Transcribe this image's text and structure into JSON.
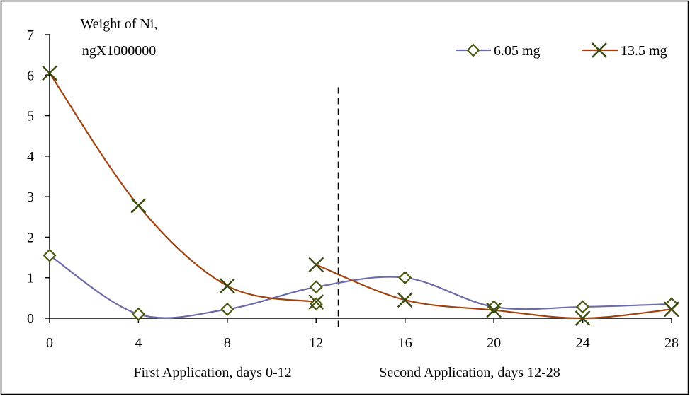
{
  "chart_data": {
    "type": "line",
    "title": "",
    "ylabel_lines": [
      "Weight of Ni,",
      "ngX1000000"
    ],
    "xlabel": {
      "left": "First Application, days 0-12",
      "right": "Second Application, days 12-28"
    },
    "xlim": [
      0,
      28
    ],
    "ylim": [
      0,
      7
    ],
    "x_ticks": [
      0,
      4,
      8,
      12,
      16,
      20,
      24,
      28
    ],
    "y_ticks": [
      0,
      1,
      2,
      3,
      4,
      5,
      6,
      7
    ],
    "divider_x": 13,
    "legend_position": "top-right",
    "series": [
      {
        "name": "6.05 mg",
        "color": "#6b6ba8",
        "marker": "diamond",
        "marker_color": "#4a5a14",
        "points": [
          [
            0,
            1.55
          ],
          [
            4,
            0.1
          ],
          [
            8,
            0.22
          ],
          [
            12,
            0.35
          ],
          [
            12,
            0.77
          ],
          [
            16,
            1.0
          ],
          [
            20,
            0.28
          ],
          [
            24,
            0.28
          ],
          [
            28,
            0.35
          ]
        ],
        "curve": [
          [
            0,
            1.55
          ],
          [
            4,
            0.1
          ],
          [
            8,
            0.22
          ],
          [
            12,
            0.77
          ],
          [
            16,
            1.0
          ],
          [
            20,
            0.28
          ],
          [
            24,
            0.28
          ],
          [
            28,
            0.35
          ]
        ]
      },
      {
        "name": "13.5 mg",
        "color": "#a0420f",
        "marker": "x",
        "marker_color": "#3b4a0f",
        "points": [
          [
            0,
            6.05
          ],
          [
            4,
            2.78
          ],
          [
            8,
            0.8
          ],
          [
            12,
            0.4
          ],
          [
            12,
            1.32
          ],
          [
            16,
            0.45
          ],
          [
            20,
            0.2
          ],
          [
            24,
            0.0
          ],
          [
            28,
            0.22
          ]
        ],
        "curve_first": [
          [
            0,
            6.05
          ],
          [
            4,
            2.78
          ],
          [
            8,
            0.8
          ],
          [
            12,
            0.4
          ]
        ],
        "curve_second": [
          [
            12,
            1.32
          ],
          [
            16,
            0.45
          ],
          [
            20,
            0.2
          ],
          [
            24,
            0.0
          ],
          [
            28,
            0.22
          ]
        ]
      }
    ]
  }
}
